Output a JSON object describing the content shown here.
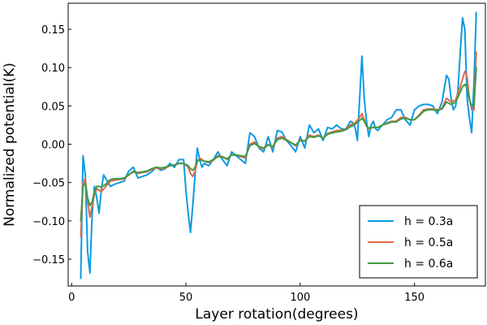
{
  "chart_data": {
    "type": "line",
    "title": "",
    "xlabel": "Layer rotation(degrees)",
    "ylabel": "Normalized potential(K)",
    "xlim": [
      -1.5,
      181.0
    ],
    "ylim": [
      -0.185,
      0.184
    ],
    "xticks": [
      0,
      50,
      100,
      150
    ],
    "xtick_labels": [
      "0",
      "50",
      "100",
      "150"
    ],
    "yticks": [
      -0.15,
      -0.1,
      -0.05,
      0.0,
      0.05,
      0.1,
      0.15
    ],
    "ytick_labels": [
      "−0.15",
      "−0.10",
      "−0.05",
      "0.00",
      "0.05",
      "0.10",
      "0.15"
    ],
    "grid": false,
    "legend_position": "bottom-right",
    "series": [
      {
        "name": "h = 0.3a",
        "color": "#0a9be3",
        "x": [
          4,
          5,
          6,
          7,
          8,
          9,
          10,
          11,
          12,
          13,
          14,
          15,
          17,
          19,
          21,
          23,
          25,
          27,
          29,
          31,
          33,
          35,
          37,
          39,
          41,
          43,
          45,
          47,
          49,
          50,
          51,
          52,
          53,
          54,
          55,
          56,
          57,
          58,
          60,
          62,
          64,
          66,
          68,
          70,
          72,
          74,
          76,
          78,
          80,
          82,
          84,
          86,
          88,
          90,
          92,
          94,
          96,
          98,
          100,
          102,
          104,
          106,
          108,
          110,
          112,
          114,
          116,
          118,
          120,
          122,
          123,
          124,
          125,
          126,
          127,
          128,
          129,
          130,
          131,
          132,
          133,
          134,
          135,
          136,
          138,
          140,
          142,
          144,
          146,
          148,
          150,
          152,
          154,
          156,
          158,
          160,
          162,
          164,
          165,
          166,
          167,
          168,
          169,
          170,
          171,
          172,
          173,
          174,
          175,
          176,
          177
        ],
        "y": [
          -0.175,
          -0.015,
          -0.04,
          -0.14,
          -0.168,
          -0.09,
          -0.055,
          -0.07,
          -0.09,
          -0.06,
          -0.04,
          -0.045,
          -0.055,
          -0.052,
          -0.05,
          -0.048,
          -0.035,
          -0.03,
          -0.044,
          -0.042,
          -0.04,
          -0.036,
          -0.03,
          -0.034,
          -0.032,
          -0.025,
          -0.03,
          -0.02,
          -0.02,
          -0.06,
          -0.09,
          -0.115,
          -0.08,
          -0.04,
          -0.005,
          -0.02,
          -0.03,
          -0.025,
          -0.028,
          -0.02,
          -0.01,
          -0.02,
          -0.028,
          -0.01,
          -0.015,
          -0.02,
          -0.025,
          0.015,
          0.01,
          -0.005,
          -0.01,
          0.01,
          -0.01,
          0.018,
          0.016,
          0.005,
          -0.002,
          -0.01,
          0.01,
          -0.005,
          0.025,
          0.015,
          0.02,
          0.005,
          0.022,
          0.02,
          0.025,
          0.02,
          0.02,
          0.03,
          0.028,
          0.022,
          0.005,
          0.06,
          0.115,
          0.06,
          0.03,
          0.01,
          0.025,
          0.03,
          0.02,
          0.018,
          0.022,
          0.025,
          0.032,
          0.035,
          0.045,
          0.045,
          0.032,
          0.025,
          0.045,
          0.05,
          0.052,
          0.052,
          0.05,
          0.04,
          0.055,
          0.09,
          0.085,
          0.06,
          0.045,
          0.05,
          0.07,
          0.12,
          0.165,
          0.15,
          0.06,
          0.035,
          0.015,
          0.08,
          0.172
        ]
      },
      {
        "name": "h = 0.5a",
        "color": "#e26a4a",
        "x": [
          4,
          5,
          6,
          7,
          8,
          9,
          10,
          11,
          12,
          13,
          15,
          17,
          19,
          21,
          23,
          25,
          27,
          29,
          31,
          33,
          35,
          37,
          39,
          41,
          43,
          45,
          47,
          49,
          51,
          52,
          53,
          54,
          55,
          56,
          58,
          60,
          62,
          64,
          66,
          68,
          70,
          72,
          74,
          76,
          78,
          80,
          82,
          84,
          86,
          88,
          90,
          92,
          94,
          96,
          98,
          100,
          102,
          104,
          106,
          108,
          110,
          112,
          114,
          116,
          118,
          120,
          122,
          124,
          126,
          127,
          128,
          129,
          130,
          132,
          134,
          136,
          138,
          140,
          142,
          144,
          146,
          148,
          150,
          152,
          154,
          156,
          158,
          160,
          162,
          164,
          166,
          168,
          170,
          171,
          172,
          173,
          174,
          175,
          176,
          177
        ],
        "y": [
          -0.12,
          -0.05,
          -0.045,
          -0.075,
          -0.095,
          -0.08,
          -0.065,
          -0.058,
          -0.06,
          -0.062,
          -0.055,
          -0.048,
          -0.047,
          -0.046,
          -0.045,
          -0.04,
          -0.035,
          -0.038,
          -0.037,
          -0.036,
          -0.033,
          -0.031,
          -0.032,
          -0.031,
          -0.028,
          -0.027,
          -0.025,
          -0.025,
          -0.03,
          -0.038,
          -0.042,
          -0.035,
          -0.022,
          -0.018,
          -0.022,
          -0.024,
          -0.021,
          -0.015,
          -0.016,
          -0.02,
          -0.014,
          -0.014,
          -0.016,
          -0.018,
          0.0,
          0.003,
          -0.004,
          -0.006,
          0.0,
          -0.004,
          0.008,
          0.01,
          0.006,
          0.002,
          -0.002,
          0.006,
          0.004,
          0.012,
          0.01,
          0.012,
          0.008,
          0.014,
          0.016,
          0.018,
          0.018,
          0.02,
          0.025,
          0.028,
          0.035,
          0.04,
          0.032,
          0.024,
          0.02,
          0.022,
          0.022,
          0.025,
          0.028,
          0.03,
          0.03,
          0.035,
          0.035,
          0.032,
          0.032,
          0.038,
          0.045,
          0.046,
          0.046,
          0.045,
          0.047,
          0.06,
          0.055,
          0.058,
          0.075,
          0.085,
          0.095,
          0.088,
          0.06,
          0.045,
          0.045,
          0.12
        ]
      },
      {
        "name": "h = 0.6a",
        "color": "#3e9a48",
        "x": [
          4,
          5,
          6,
          7,
          8,
          9,
          10,
          11,
          12,
          13,
          15,
          17,
          19,
          21,
          23,
          25,
          27,
          29,
          31,
          33,
          35,
          37,
          39,
          41,
          43,
          45,
          47,
          49,
          51,
          52,
          53,
          54,
          55,
          56,
          58,
          60,
          62,
          64,
          66,
          68,
          70,
          72,
          74,
          76,
          78,
          80,
          82,
          84,
          86,
          88,
          90,
          92,
          94,
          96,
          98,
          100,
          102,
          104,
          106,
          108,
          110,
          112,
          114,
          116,
          118,
          120,
          122,
          124,
          126,
          127,
          128,
          129,
          130,
          132,
          134,
          136,
          138,
          140,
          142,
          144,
          146,
          148,
          150,
          152,
          154,
          156,
          158,
          160,
          162,
          164,
          166,
          168,
          170,
          171,
          172,
          173,
          174,
          175,
          176,
          177
        ],
        "y": [
          -0.1,
          -0.055,
          -0.05,
          -0.07,
          -0.08,
          -0.075,
          -0.062,
          -0.055,
          -0.055,
          -0.056,
          -0.052,
          -0.046,
          -0.045,
          -0.045,
          -0.044,
          -0.04,
          -0.036,
          -0.037,
          -0.036,
          -0.035,
          -0.032,
          -0.03,
          -0.031,
          -0.03,
          -0.028,
          -0.027,
          -0.025,
          -0.025,
          -0.028,
          -0.032,
          -0.034,
          -0.03,
          -0.022,
          -0.02,
          -0.022,
          -0.023,
          -0.02,
          -0.016,
          -0.017,
          -0.019,
          -0.014,
          -0.014,
          -0.015,
          -0.016,
          -0.002,
          0.001,
          -0.003,
          -0.005,
          -0.001,
          -0.003,
          0.006,
          0.008,
          0.005,
          0.002,
          -0.001,
          0.005,
          0.004,
          0.01,
          0.009,
          0.011,
          0.008,
          0.013,
          0.015,
          0.016,
          0.017,
          0.019,
          0.023,
          0.026,
          0.031,
          0.034,
          0.03,
          0.024,
          0.021,
          0.022,
          0.022,
          0.025,
          0.027,
          0.029,
          0.029,
          0.033,
          0.034,
          0.032,
          0.032,
          0.037,
          0.043,
          0.045,
          0.045,
          0.044,
          0.046,
          0.055,
          0.052,
          0.055,
          0.068,
          0.075,
          0.078,
          0.074,
          0.058,
          0.05,
          0.05,
          0.1
        ]
      }
    ]
  }
}
